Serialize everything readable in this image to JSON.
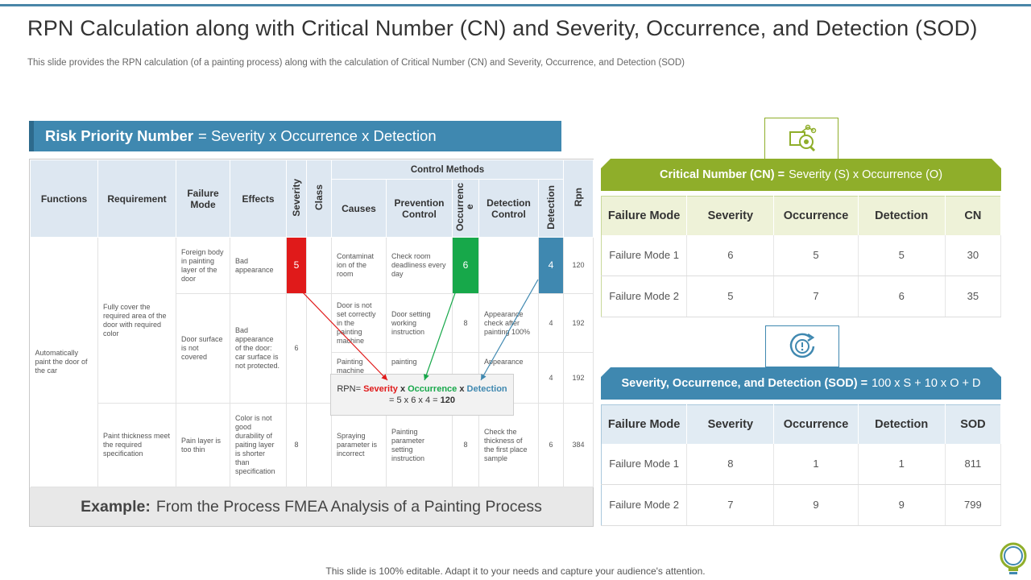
{
  "title": "RPN Calculation along with Critical Number (CN) and Severity, Occurrence, and Detection (SOD)",
  "subtitle": "This slide provides the RPN calculation (of a painting process) along with the calculation of Critical Number (CN) and Severity,  Occurrence, and Detection (SOD)",
  "rpn_banner": {
    "bold": "Risk Priority Number",
    "rest": "= Severity x Occurrence x Detection"
  },
  "fmea": {
    "headers": {
      "functions": "Functions",
      "requirement": "Requirement",
      "failure_mode": "Failure Mode",
      "effects": "Effects",
      "severity": "Severity",
      "class": "Class",
      "control_methods": "Control Methods",
      "causes": "Causes",
      "prevention_control": "Prevention Control",
      "occurrence": "Occurrenc e",
      "detection_control": "Detection Control",
      "detection": "Detection",
      "rpn": "Rpn"
    },
    "function": "Automatically paint the door of the car",
    "req1": "Fully cover the required area of the door with required color",
    "req2": "Paint thickness meet the required specification",
    "fm1": "Foreign body in painting layer of the door",
    "fm2": "Door surface is not covered",
    "fm3": "Pain layer is too thin",
    "eff1": "Bad appearance",
    "eff2": "Bad appearance of the door: car surface is not protected.",
    "eff3": "Color is not good durability of paiting layer is shorter than specification",
    "rows": [
      {
        "severity": "5",
        "cause": "Contaminat ion of the room",
        "prevention": "Check room deadliness every day",
        "occurrence": "6",
        "detection_control": "",
        "detection": "4",
        "rpn": "120"
      },
      {
        "severity": "6",
        "cause": "Door is not set correctly in the painting machine",
        "prevention": "Door setting working instruction",
        "occurrence": "8",
        "detection_control": "Appearance check after painting 100%",
        "detection": "4",
        "rpn": "192"
      },
      {
        "severity": "",
        "cause": "Painting machine",
        "prevention": "painting",
        "occurrence": "",
        "detection_control": "Appearance",
        "detection": "4",
        "rpn": "192"
      },
      {
        "severity": "8",
        "cause": "Spraying parameter is incorrect",
        "prevention": "Painting parameter setting instruction",
        "occurrence": "8",
        "detection_control": "Check the thickness of the first place sample",
        "detection": "6",
        "rpn": "384"
      }
    ],
    "formula": {
      "prefix": "RPN=",
      "severity": "Severity",
      "x": "x",
      "occurrence": "Occurrence",
      "detection": "Detection",
      "line2_prefix": "= 5 x 6 x 4 = ",
      "result": "120"
    },
    "example_bold": "Example:",
    "example_rest": "From the Process FMEA Analysis of a Painting Process"
  },
  "cn": {
    "banner_bold": "Critical Number (CN) =",
    "banner_rest": "Severity (S) x Occurrence (O)",
    "headers": [
      "Failure Mode",
      "Severity",
      "Occurrence",
      "Detection",
      "CN"
    ],
    "rows": [
      [
        "Failure Mode 1",
        "6",
        "5",
        "5",
        "30"
      ],
      [
        "Failure Mode 2",
        "5",
        "7",
        "6",
        "35"
      ]
    ]
  },
  "sod": {
    "banner_bold": "Severity, Occurrence, and Detection (SOD) =",
    "banner_rest": "100 x S + 10 x O + D",
    "headers": [
      "Failure Mode",
      "Severity",
      "Occurrence",
      "Detection",
      "SOD"
    ],
    "rows": [
      [
        "Failure Mode 1",
        "8",
        "1",
        "1",
        "811"
      ],
      [
        "Failure Mode 2",
        "7",
        "9",
        "9",
        "799"
      ]
    ]
  },
  "footer": "This slide is 100% editable. Adapt it to your needs and capture your audience's attention.",
  "colors": {
    "blue": "#3f88b0",
    "green_banner": "#8fae2a",
    "red": "#e01a1a",
    "green": "#17a84a"
  },
  "icons": [
    "analysis-icon",
    "alert-cycle-icon",
    "lightbulb-icon"
  ]
}
